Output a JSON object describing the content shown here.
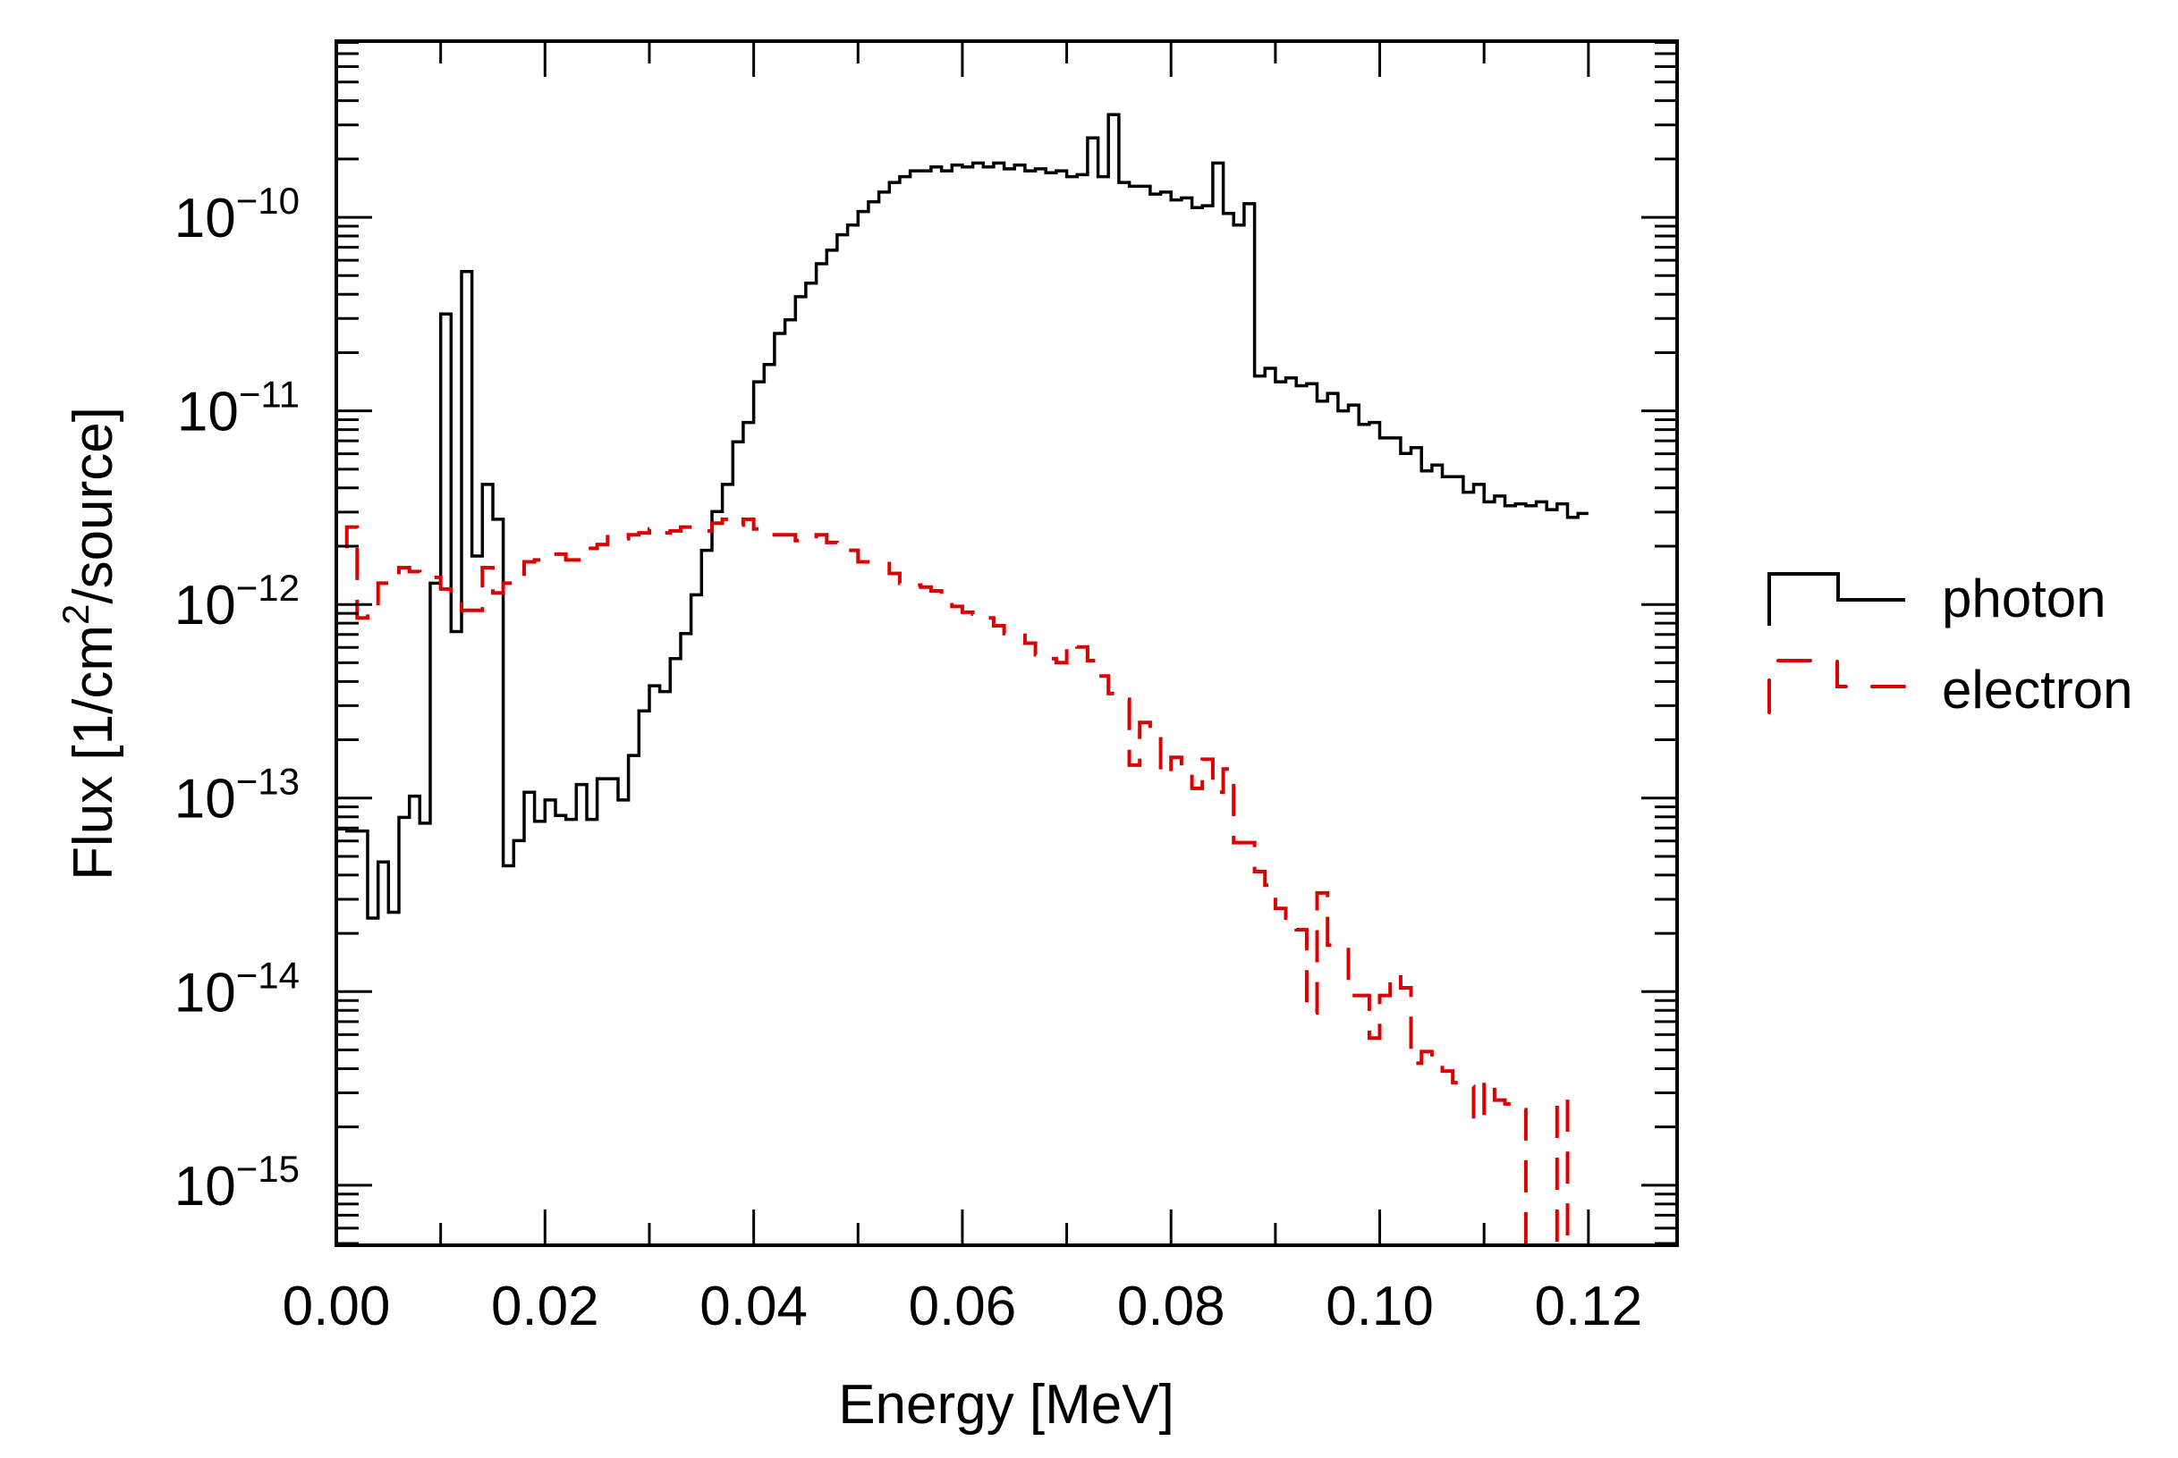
{
  "chart_data": {
    "type": "line",
    "style": "step-histogram",
    "title": "",
    "xlabel": "Energy [MeV]",
    "ylabel": {
      "prefix": "Flux  [1/cm",
      "sup": "2",
      "suffix": "/source]"
    },
    "xscale": "linear",
    "yscale": "log",
    "xlim": [
      0,
      0.1285
    ],
    "ylim_log10": [
      -15.31,
      -9.09
    ],
    "bin_width": 0.001,
    "x_ticks": [
      {
        "value": 0.0,
        "label": "0.00"
      },
      {
        "value": 0.02,
        "label": "0.02"
      },
      {
        "value": 0.04,
        "label": "0.04"
      },
      {
        "value": 0.06,
        "label": "0.06"
      },
      {
        "value": 0.08,
        "label": "0.08"
      },
      {
        "value": 0.1,
        "label": "0.10"
      },
      {
        "value": 0.12,
        "label": "0.12"
      }
    ],
    "y_ticks": [
      {
        "exp": -10,
        "base": "10",
        "sup": "−10"
      },
      {
        "exp": -11,
        "base": "10",
        "sup": "−11"
      },
      {
        "exp": -12,
        "base": "10",
        "sup": "−12"
      },
      {
        "exp": -13,
        "base": "10",
        "sup": "−13"
      },
      {
        "exp": -14,
        "base": "10",
        "sup": "−14"
      },
      {
        "exp": -15,
        "base": "10",
        "sup": "−15"
      }
    ],
    "grid": false,
    "legend_position": "right",
    "series": [
      {
        "name": "photon",
        "color": "#000000",
        "dashed": false,
        "x_start": 0.0,
        "log10_values": [
          -13.16,
          -13.17,
          -13.17,
          -13.62,
          -13.33,
          -13.59,
          -13.1,
          -12.99,
          -13.13,
          -11.89,
          -10.5,
          -12.14,
          -10.28,
          -11.75,
          -11.38,
          -11.56,
          -13.35,
          -13.22,
          -12.97,
          -13.12,
          -13.01,
          -13.09,
          -13.11,
          -12.93,
          -13.11,
          -12.9,
          -12.9,
          -13.01,
          -12.78,
          -12.55,
          -12.42,
          -12.45,
          -12.28,
          -12.15,
          -11.95,
          -11.72,
          -11.52,
          -11.38,
          -11.16,
          -11.06,
          -10.85,
          -10.76,
          -10.6,
          -10.53,
          -10.41,
          -10.34,
          -10.24,
          -10.17,
          -10.09,
          -10.04,
          -9.97,
          -9.92,
          -9.87,
          -9.82,
          -9.79,
          -9.76,
          -9.76,
          -9.74,
          -9.76,
          -9.73,
          -9.74,
          -9.72,
          -9.74,
          -9.72,
          -9.75,
          -9.73,
          -9.76,
          -9.75,
          -9.77,
          -9.76,
          -9.79,
          -9.78,
          -9.59,
          -9.79,
          -9.47,
          -9.82,
          -9.84,
          -9.84,
          -9.88,
          -9.87,
          -9.91,
          -9.9,
          -9.95,
          -9.94,
          -9.72,
          -9.98,
          -10.04,
          -9.93,
          -10.82,
          -10.78,
          -10.85,
          -10.83,
          -10.87,
          -10.86,
          -10.95,
          -10.91,
          -11.0,
          -10.97,
          -11.07,
          -11.06,
          -11.14,
          -11.14,
          -11.22,
          -11.19,
          -11.31,
          -11.28,
          -11.34,
          -11.34,
          -11.42,
          -11.38,
          -11.47,
          -11.44,
          -11.49,
          -11.48,
          -11.49,
          -11.47,
          -11.51,
          -11.48,
          -11.55,
          -11.53
        ]
      },
      {
        "name": "electron",
        "color": "#dd0000",
        "dashed": true,
        "x_start": 0.0,
        "log10_values": [
          -11.7,
          -11.6,
          -12.07,
          -12.01,
          -11.89,
          -11.89,
          -11.81,
          -11.83,
          -11.86,
          -11.86,
          -11.92,
          -11.97,
          -12.03,
          -12.03,
          -11.81,
          -11.94,
          -11.89,
          -11.87,
          -11.78,
          -11.77,
          -11.74,
          -11.74,
          -11.77,
          -11.77,
          -11.71,
          -11.69,
          -11.65,
          -11.66,
          -11.64,
          -11.63,
          -11.61,
          -11.63,
          -11.62,
          -11.6,
          -11.6,
          -11.62,
          -11.58,
          -11.56,
          -11.59,
          -11.56,
          -11.61,
          -11.64,
          -11.64,
          -11.64,
          -11.67,
          -11.67,
          -11.64,
          -11.68,
          -11.7,
          -11.72,
          -11.78,
          -11.78,
          -11.78,
          -11.84,
          -11.89,
          -11.9,
          -11.91,
          -11.93,
          -11.98,
          -12.01,
          -12.04,
          -12.05,
          -12.07,
          -12.11,
          -12.15,
          -12.16,
          -12.2,
          -12.26,
          -12.28,
          -12.3,
          -12.2,
          -12.22,
          -12.29,
          -12.37,
          -12.46,
          -12.49,
          -12.83,
          -12.61,
          -12.66,
          -12.88,
          -12.79,
          -12.87,
          -12.95,
          -12.8,
          -12.97,
          -12.85,
          -13.23,
          -13.23,
          -13.38,
          -13.45,
          -13.57,
          -13.62,
          -13.68,
          -14.11,
          -13.49,
          -13.76,
          -13.77,
          -14.02,
          -14.02,
          -14.24,
          -14.02,
          -13.91,
          -13.98,
          -14.37,
          -14.31,
          -14.37,
          -14.41,
          -14.47,
          -14.49,
          -14.67,
          -14.46,
          -14.56,
          -14.58,
          -14.61,
          null,
          null,
          null,
          -14.55,
          null,
          null
        ]
      }
    ]
  }
}
